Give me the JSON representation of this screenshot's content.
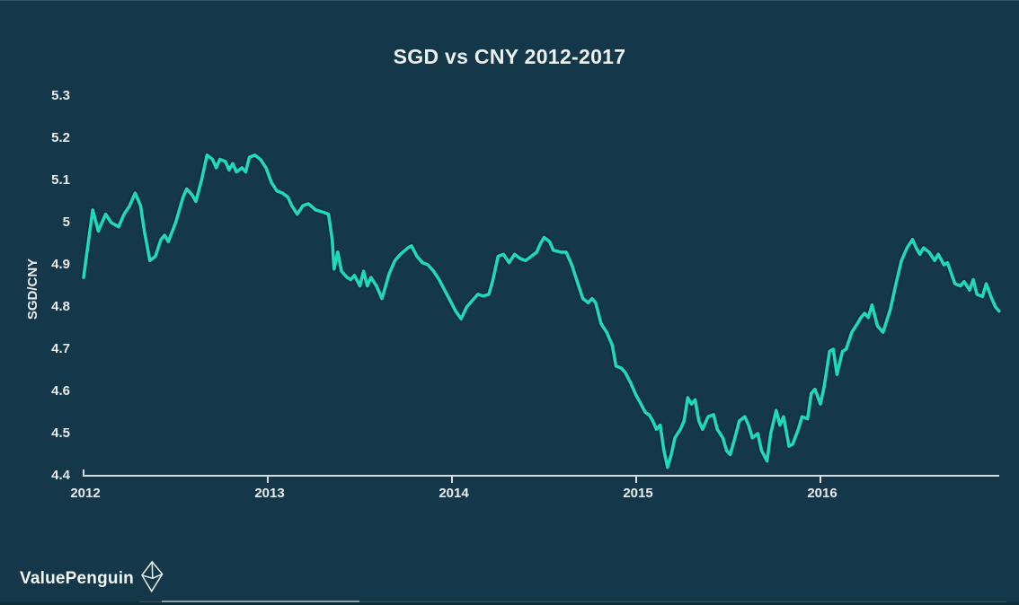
{
  "title": "SGD vs CNY 2012-2017",
  "brand": {
    "name": "ValuePenguin"
  },
  "colors": {
    "background": "#14384a",
    "line": "#1ed9bc",
    "line_shadow": "#0a2531",
    "text": "#e9ecec",
    "axis": "#d8dde0"
  },
  "chart_data": {
    "type": "line",
    "title": "SGD vs CNY 2012-2017",
    "xlabel": "",
    "ylabel": "SGD/CNY",
    "xlim": [
      2012,
      2017.05
    ],
    "ylim": [
      4.4,
      5.3
    ],
    "grid": false,
    "legend": "none",
    "x_ticks": [
      "2012",
      "2013",
      "2014",
      "2015",
      "2016"
    ],
    "y_ticks": [
      "5.3",
      "5.2",
      "5.1",
      "5",
      "4.9",
      "4.8",
      "4.7",
      "4.6",
      "4.5",
      "4.4"
    ],
    "series": [
      {
        "name": "SGD/CNY",
        "color": "#1ed9bc",
        "points": [
          [
            2012.0,
            4.87
          ],
          [
            2012.05,
            5.03
          ],
          [
            2012.08,
            4.98
          ],
          [
            2012.12,
            5.02
          ],
          [
            2012.15,
            5.0
          ],
          [
            2012.19,
            4.99
          ],
          [
            2012.22,
            5.02
          ],
          [
            2012.25,
            5.04
          ],
          [
            2012.28,
            5.07
          ],
          [
            2012.31,
            5.04
          ],
          [
            2012.33,
            4.98
          ],
          [
            2012.36,
            4.91
          ],
          [
            2012.39,
            4.92
          ],
          [
            2012.42,
            4.96
          ],
          [
            2012.44,
            4.97
          ],
          [
            2012.46,
            4.955
          ],
          [
            2012.5,
            5.0
          ],
          [
            2012.54,
            5.06
          ],
          [
            2012.56,
            5.08
          ],
          [
            2012.59,
            5.065
          ],
          [
            2012.61,
            5.05
          ],
          [
            2012.64,
            5.1
          ],
          [
            2012.67,
            5.16
          ],
          [
            2012.7,
            5.15
          ],
          [
            2012.72,
            5.13
          ],
          [
            2012.74,
            5.15
          ],
          [
            2012.77,
            5.145
          ],
          [
            2012.79,
            5.125
          ],
          [
            2012.81,
            5.14
          ],
          [
            2012.83,
            5.12
          ],
          [
            2012.86,
            5.13
          ],
          [
            2012.88,
            5.12
          ],
          [
            2012.9,
            5.155
          ],
          [
            2012.93,
            5.16
          ],
          [
            2012.96,
            5.15
          ],
          [
            2012.99,
            5.13
          ],
          [
            2013.02,
            5.095
          ],
          [
            2013.05,
            5.075
          ],
          [
            2013.08,
            5.07
          ],
          [
            2013.11,
            5.06
          ],
          [
            2013.13,
            5.04
          ],
          [
            2013.16,
            5.02
          ],
          [
            2013.19,
            5.04
          ],
          [
            2013.22,
            5.045
          ],
          [
            2013.26,
            5.03
          ],
          [
            2013.3,
            5.025
          ],
          [
            2013.33,
            5.02
          ],
          [
            2013.35,
            4.96
          ],
          [
            2013.36,
            4.89
          ],
          [
            2013.38,
            4.93
          ],
          [
            2013.4,
            4.885
          ],
          [
            2013.43,
            4.87
          ],
          [
            2013.45,
            4.865
          ],
          [
            2013.47,
            4.875
          ],
          [
            2013.5,
            4.85
          ],
          [
            2013.52,
            4.885
          ],
          [
            2013.54,
            4.85
          ],
          [
            2013.56,
            4.87
          ],
          [
            2013.59,
            4.85
          ],
          [
            2013.62,
            4.82
          ],
          [
            2013.66,
            4.88
          ],
          [
            2013.69,
            4.91
          ],
          [
            2013.72,
            4.925
          ],
          [
            2013.76,
            4.94
          ],
          [
            2013.78,
            4.945
          ],
          [
            2013.81,
            4.92
          ],
          [
            2013.84,
            4.905
          ],
          [
            2013.87,
            4.9
          ],
          [
            2013.9,
            4.885
          ],
          [
            2013.93,
            4.865
          ],
          [
            2013.96,
            4.84
          ],
          [
            2013.99,
            4.815
          ],
          [
            2014.02,
            4.79
          ],
          [
            2014.05,
            4.772
          ],
          [
            2014.08,
            4.8
          ],
          [
            2014.11,
            4.815
          ],
          [
            2014.14,
            4.83
          ],
          [
            2014.17,
            4.826
          ],
          [
            2014.2,
            4.83
          ],
          [
            2014.22,
            4.86
          ],
          [
            2014.25,
            4.92
          ],
          [
            2014.28,
            4.925
          ],
          [
            2014.31,
            4.905
          ],
          [
            2014.34,
            4.925
          ],
          [
            2014.37,
            4.915
          ],
          [
            2014.4,
            4.91
          ],
          [
            2014.43,
            4.92
          ],
          [
            2014.46,
            4.93
          ],
          [
            2014.48,
            4.95
          ],
          [
            2014.5,
            4.965
          ],
          [
            2014.53,
            4.955
          ],
          [
            2014.55,
            4.935
          ],
          [
            2014.59,
            4.93
          ],
          [
            2014.62,
            4.93
          ],
          [
            2014.65,
            4.9
          ],
          [
            2014.68,
            4.86
          ],
          [
            2014.71,
            4.82
          ],
          [
            2014.74,
            4.81
          ],
          [
            2014.76,
            4.82
          ],
          [
            2014.78,
            4.81
          ],
          [
            2014.81,
            4.76
          ],
          [
            2014.84,
            4.74
          ],
          [
            2014.87,
            4.71
          ],
          [
            2014.89,
            4.66
          ],
          [
            2014.92,
            4.655
          ],
          [
            2014.94,
            4.645
          ],
          [
            2014.97,
            4.62
          ],
          [
            2015.0,
            4.59
          ],
          [
            2015.02,
            4.575
          ],
          [
            2015.05,
            4.55
          ],
          [
            2015.07,
            4.545
          ],
          [
            2015.09,
            4.53
          ],
          [
            2015.11,
            4.51
          ],
          [
            2015.13,
            4.52
          ],
          [
            2015.15,
            4.46
          ],
          [
            2015.17,
            4.42
          ],
          [
            2015.19,
            4.45
          ],
          [
            2015.21,
            4.49
          ],
          [
            2015.24,
            4.51
          ],
          [
            2015.26,
            4.53
          ],
          [
            2015.28,
            4.585
          ],
          [
            2015.3,
            4.57
          ],
          [
            2015.32,
            4.58
          ],
          [
            2015.34,
            4.53
          ],
          [
            2015.36,
            4.51
          ],
          [
            2015.39,
            4.54
          ],
          [
            2015.42,
            4.545
          ],
          [
            2015.44,
            4.51
          ],
          [
            2015.47,
            4.49
          ],
          [
            2015.49,
            4.46
          ],
          [
            2015.51,
            4.45
          ],
          [
            2015.53,
            4.48
          ],
          [
            2015.56,
            4.53
          ],
          [
            2015.59,
            4.54
          ],
          [
            2015.61,
            4.52
          ],
          [
            2015.63,
            4.49
          ],
          [
            2015.66,
            4.5
          ],
          [
            2015.68,
            4.46
          ],
          [
            2015.71,
            4.435
          ],
          [
            2015.73,
            4.5
          ],
          [
            2015.76,
            4.555
          ],
          [
            2015.78,
            4.52
          ],
          [
            2015.8,
            4.54
          ],
          [
            2015.83,
            4.47
          ],
          [
            2015.85,
            4.475
          ],
          [
            2015.88,
            4.51
          ],
          [
            2015.9,
            4.54
          ],
          [
            2015.93,
            4.535
          ],
          [
            2015.95,
            4.595
          ],
          [
            2015.97,
            4.605
          ],
          [
            2016.0,
            4.57
          ],
          [
            2016.02,
            4.61
          ],
          [
            2016.05,
            4.695
          ],
          [
            2016.07,
            4.7
          ],
          [
            2016.09,
            4.64
          ],
          [
            2016.12,
            4.695
          ],
          [
            2016.14,
            4.7
          ],
          [
            2016.17,
            4.74
          ],
          [
            2016.2,
            4.76
          ],
          [
            2016.22,
            4.775
          ],
          [
            2016.24,
            4.785
          ],
          [
            2016.26,
            4.775
          ],
          [
            2016.28,
            4.805
          ],
          [
            2016.31,
            4.755
          ],
          [
            2016.34,
            4.74
          ],
          [
            2016.38,
            4.795
          ],
          [
            2016.41,
            4.855
          ],
          [
            2016.44,
            4.91
          ],
          [
            2016.47,
            4.94
          ],
          [
            2016.5,
            4.96
          ],
          [
            2016.52,
            4.94
          ],
          [
            2016.54,
            4.925
          ],
          [
            2016.56,
            4.94
          ],
          [
            2016.59,
            4.93
          ],
          [
            2016.62,
            4.91
          ],
          [
            2016.64,
            4.925
          ],
          [
            2016.67,
            4.9
          ],
          [
            2016.69,
            4.905
          ],
          [
            2016.71,
            4.88
          ],
          [
            2016.73,
            4.855
          ],
          [
            2016.76,
            4.85
          ],
          [
            2016.78,
            4.86
          ],
          [
            2016.81,
            4.84
          ],
          [
            2016.83,
            4.865
          ],
          [
            2016.85,
            4.83
          ],
          [
            2016.88,
            4.825
          ],
          [
            2016.9,
            4.855
          ],
          [
            2016.93,
            4.82
          ],
          [
            2016.95,
            4.8
          ],
          [
            2016.97,
            4.79
          ]
        ]
      }
    ]
  }
}
